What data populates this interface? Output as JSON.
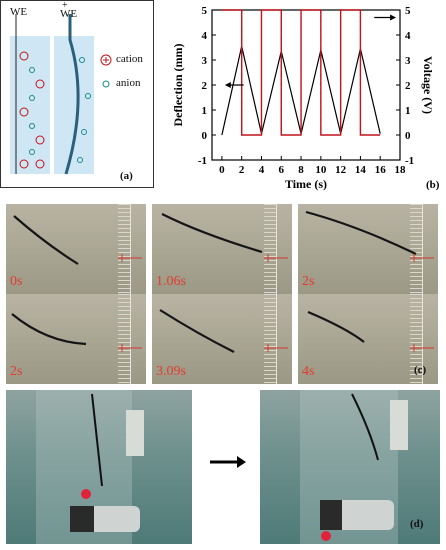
{
  "panel_a": {
    "we_left": "WE",
    "we_right": "WE",
    "plus_sign": "+",
    "legend_cation": "cation",
    "legend_anion": "anion",
    "tag": "(a)"
  },
  "chart_data": {
    "type": "line",
    "xlabel": "Time (s)",
    "ylabel": "Deflection (mm)",
    "y2label": "Voltage (V)",
    "xlim": [
      -1,
      18
    ],
    "ylim": [
      -1,
      5
    ],
    "y2lim": [
      -1,
      5
    ],
    "xticks": [
      0,
      2,
      4,
      6,
      8,
      10,
      12,
      14,
      16,
      18
    ],
    "yticks": [
      -1,
      0,
      1,
      2,
      3,
      4,
      5
    ],
    "y2ticks": [
      -1,
      0,
      1,
      2,
      3,
      4,
      5
    ],
    "series": [
      {
        "axis": "left",
        "color": "#000000",
        "x": [
          0,
          2,
          4,
          6,
          8,
          10,
          12,
          14,
          16
        ],
        "y": [
          0,
          3.55,
          0.05,
          3.35,
          0.05,
          3.4,
          0.05,
          3.45,
          0.05
        ]
      },
      {
        "axis": "right",
        "color": "#c0141a",
        "x": [
          0,
          2,
          2,
          4,
          4,
          6,
          6,
          8,
          8,
          10,
          10,
          12,
          12,
          14,
          14,
          16
        ],
        "y": [
          5,
          5,
          0,
          0,
          5,
          5,
          0,
          0,
          5,
          5,
          0,
          0,
          5,
          5,
          0,
          0
        ]
      }
    ],
    "tag": "(b)"
  },
  "panel_c": {
    "frames": [
      {
        "time": "0s"
      },
      {
        "time": "1.06s"
      },
      {
        "time": "2s"
      },
      {
        "time": "2s"
      },
      {
        "time": "3.09s"
      },
      {
        "time": "4s"
      }
    ],
    "tag": "(c)"
  },
  "panel_d": {
    "tag": "(d)"
  },
  "colors": {
    "voltage_red": "#c0141a",
    "time_label_red": "#e23b2f"
  }
}
